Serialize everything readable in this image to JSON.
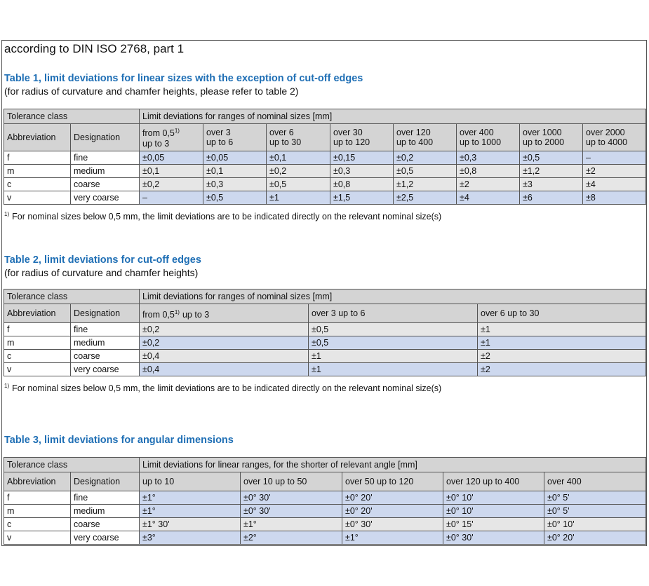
{
  "header": {
    "title": "according to DIN ISO 2768, part 1"
  },
  "tables": [
    {
      "title": "Table 1, limit deviations for linear sizes with the exception of cut-off edges",
      "subtitle": "(for radius of curvature and chamfer heights, please refer to table 2)",
      "group_headers": [
        "Tolerance class",
        "Limit deviations for ranges of nominal sizes [mm]"
      ],
      "columns": [
        {
          "lines": [
            "Abbreviation"
          ]
        },
        {
          "lines": [
            "Designation"
          ]
        },
        {
          "lines": [
            "from 0,5",
            "up to 3"
          ],
          "note": "1)"
        },
        {
          "lines": [
            "over 3",
            "up to 6"
          ]
        },
        {
          "lines": [
            "over 6",
            "up to 30"
          ]
        },
        {
          "lines": [
            "over 30",
            "up to 120"
          ]
        },
        {
          "lines": [
            "over 120",
            "up to 400"
          ]
        },
        {
          "lines": [
            "over 400",
            "up to 1000"
          ]
        },
        {
          "lines": [
            "over 1000",
            "up to 2000"
          ]
        },
        {
          "lines": [
            "over 2000",
            "up to 4000"
          ]
        }
      ],
      "rows": [
        [
          "f",
          "fine",
          "±0,05",
          "±0,05",
          "±0,1",
          "±0,15",
          "±0,2",
          "±0,3",
          "±0,5",
          "–"
        ],
        [
          "m",
          "medium",
          "±0,1",
          "±0,1",
          "±0,2",
          "±0,3",
          "±0,5",
          "±0,8",
          "±1,2",
          "±2"
        ],
        [
          "c",
          "coarse",
          "±0,2",
          "±0,3",
          "±0,5",
          "±0,8",
          "±1,2",
          "±2",
          "±3",
          "±4"
        ],
        [
          "v",
          "very coarse",
          "–",
          "±0,5",
          "±1",
          "±1,5",
          "±2,5",
          "±4",
          "±6",
          "±8"
        ]
      ],
      "footnote": {
        "note": "1)",
        "text": "For nominal sizes below 0,5 mm, the limit deviations are to be indicated directly on the relevant nominal size(s)"
      }
    },
    {
      "title": "Table 2, limit deviations for cut-off edges",
      "subtitle": "(for radius of curvature and chamfer heights)",
      "group_headers": [
        "Tolerance class",
        "Limit deviations for ranges of nominal sizes [mm]"
      ],
      "columns": [
        {
          "lines": [
            "Abbreviation"
          ]
        },
        {
          "lines": [
            "Designation"
          ]
        },
        {
          "lines": [
            "from 0,5",
            "up to 3"
          ],
          "note": "1)"
        },
        {
          "lines": [
            "over 3 up to 6"
          ]
        },
        {
          "lines": [
            "over 6 up to 30"
          ]
        }
      ],
      "rows": [
        [
          "f",
          "fine",
          "±0,2",
          "±0,5",
          "±1"
        ],
        [
          "m",
          "medium",
          "±0,2",
          "±0,5",
          "±1"
        ],
        [
          "c",
          "coarse",
          "±0,4",
          "±1",
          "±2"
        ],
        [
          "v",
          "very coarse",
          "±0,4",
          "±1",
          "±2"
        ]
      ],
      "footnote": {
        "note": "1)",
        "text": "For nominal sizes below 0,5 mm, the limit deviations are to be indicated directly on the relevant nominal size(s)"
      }
    },
    {
      "title": "Table 3, limit deviations for angular dimensions",
      "group_headers": [
        "Tolerance class",
        "Limit deviations for linear ranges, for the shorter of relevant angle [mm]"
      ],
      "columns": [
        {
          "lines": [
            "Abbreviation"
          ]
        },
        {
          "lines": [
            "Designation"
          ]
        },
        {
          "lines": [
            "up to 10"
          ]
        },
        {
          "lines": [
            "over 10 up to 50"
          ]
        },
        {
          "lines": [
            "over 50 up to 120"
          ]
        },
        {
          "lines": [
            "over 120 up to 400"
          ]
        },
        {
          "lines": [
            "over 400"
          ]
        }
      ],
      "rows": [
        [
          "f",
          "fine",
          "±1°",
          "±0° 30'",
          "±0° 20'",
          "±0° 10'",
          "±0° 5'"
        ],
        [
          "m",
          "medium",
          "±1°",
          "±0° 30'",
          "±0° 20'",
          "±0° 10'",
          "±0° 5'"
        ],
        [
          "c",
          "coarse",
          "±1° 30'",
          "±1°",
          "±0° 30'",
          "±0° 15'",
          "±0° 10'"
        ],
        [
          "v",
          "very coarse",
          "±3°",
          "±2°",
          "±1°",
          "±0° 30'",
          "±0° 20'"
        ]
      ]
    }
  ]
}
